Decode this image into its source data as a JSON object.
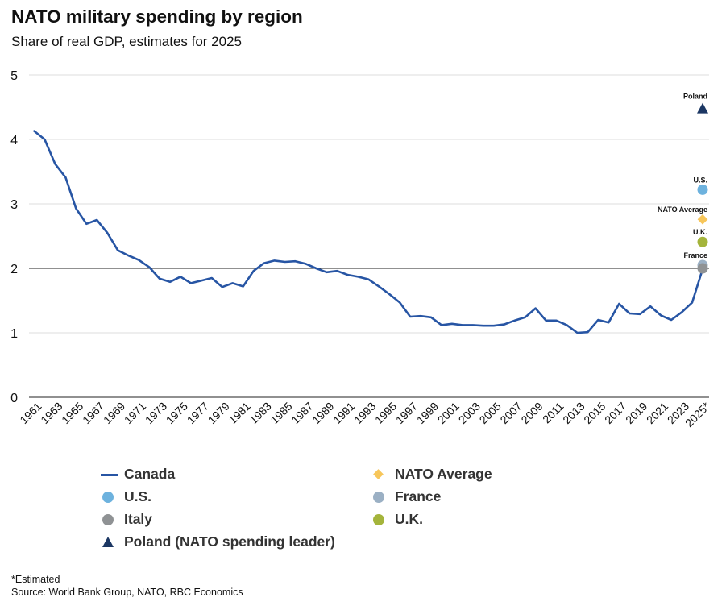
{
  "title": "NATO military spending by region",
  "subtitle": "Share of real GDP, estimates for 2025",
  "footnote": "*Estimated",
  "source": "Source: World Bank Group, NATO, RBC Economics",
  "colors": {
    "canada": "#2755a4",
    "us": "#6db2de",
    "nato_average": "#f7c65a",
    "france": "#9bb0c4",
    "italy": "#8f9294",
    "uk": "#a4b43b",
    "poland": "#1c3763",
    "grid": "#dddddd",
    "reference_line": "#222222"
  },
  "legend": [
    {
      "label": "Canada",
      "symbol": "line",
      "color": "#2755a4"
    },
    {
      "label": "NATO Average",
      "symbol": "diamond",
      "color": "#f7c65a"
    },
    {
      "label": "U.S.",
      "symbol": "circle",
      "color": "#6db2de"
    },
    {
      "label": "France",
      "symbol": "circle",
      "color": "#9bb0c4"
    },
    {
      "label": "Italy",
      "symbol": "circle",
      "color": "#8f9294"
    },
    {
      "label": "U.K.",
      "symbol": "circle",
      "color": "#a4b43b"
    },
    {
      "label": "Poland (NATO spending leader)",
      "symbol": "triangle",
      "color": "#1c3763"
    }
  ],
  "chart_data": {
    "type": "line",
    "title": "NATO military spending by region",
    "subtitle": "Share of real GDP, estimates for 2025",
    "xlabel": "",
    "ylabel": "",
    "ylim": [
      0,
      5
    ],
    "yticks": [
      0,
      1,
      2,
      3,
      4,
      5
    ],
    "xlim": [
      1961,
      2025
    ],
    "xtick_labels": [
      "1961",
      "1963",
      "1965",
      "1967",
      "1969",
      "1971",
      "1973",
      "1975",
      "1977",
      "1979",
      "1981",
      "1983",
      "1985",
      "1987",
      "1989",
      "1991",
      "1993",
      "1995",
      "1997",
      "1999",
      "2001",
      "2003",
      "2005",
      "2007",
      "2009",
      "2011",
      "2013",
      "2015",
      "2017",
      "2019",
      "2021",
      "2023",
      "2025*"
    ],
    "xtick_years": [
      1961,
      1963,
      1965,
      1967,
      1969,
      1971,
      1973,
      1975,
      1977,
      1979,
      1981,
      1983,
      1985,
      1987,
      1989,
      1991,
      1993,
      1995,
      1997,
      1999,
      2001,
      2003,
      2005,
      2007,
      2009,
      2011,
      2013,
      2015,
      2017,
      2019,
      2021,
      2023,
      2025
    ],
    "grid": true,
    "reference_line": 2,
    "series": [
      {
        "name": "Canada",
        "x": [
          1961,
          1962,
          1963,
          1964,
          1965,
          1966,
          1967,
          1968,
          1969,
          1970,
          1971,
          1972,
          1973,
          1974,
          1975,
          1976,
          1977,
          1978,
          1979,
          1980,
          1981,
          1982,
          1983,
          1984,
          1985,
          1986,
          1987,
          1988,
          1989,
          1990,
          1991,
          1992,
          1993,
          1994,
          1995,
          1996,
          1997,
          1998,
          1999,
          2000,
          2001,
          2002,
          2003,
          2004,
          2005,
          2006,
          2007,
          2008,
          2009,
          2010,
          2011,
          2012,
          2013,
          2014,
          2015,
          2016,
          2017,
          2018,
          2019,
          2020,
          2021,
          2022,
          2023,
          2024,
          2025
        ],
        "values": [
          4.13,
          4.0,
          3.62,
          3.41,
          2.93,
          2.69,
          2.75,
          2.55,
          2.28,
          2.2,
          2.13,
          2.02,
          1.84,
          1.79,
          1.87,
          1.77,
          1.81,
          1.85,
          1.71,
          1.77,
          1.72,
          1.96,
          2.08,
          2.12,
          2.1,
          2.11,
          2.07,
          2.0,
          1.94,
          1.96,
          1.9,
          1.87,
          1.83,
          1.72,
          1.6,
          1.47,
          1.25,
          1.26,
          1.24,
          1.12,
          1.14,
          1.12,
          1.12,
          1.11,
          1.11,
          1.13,
          1.19,
          1.24,
          1.38,
          1.19,
          1.19,
          1.12,
          1.0,
          1.01,
          1.2,
          1.16,
          1.45,
          1.3,
          1.29,
          1.41,
          1.27,
          1.2,
          1.32,
          1.47,
          1.99
        ]
      }
    ],
    "points_2025": [
      {
        "name": "Poland",
        "label": "Poland",
        "value": 4.48,
        "symbol": "triangle",
        "color": "#1c3763"
      },
      {
        "name": "U.S.",
        "label": "U.S.",
        "value": 3.22,
        "symbol": "circle",
        "color": "#6db2de"
      },
      {
        "name": "NATO Average",
        "label": "NATO Average",
        "value": 2.76,
        "symbol": "diamond",
        "color": "#f7c65a"
      },
      {
        "name": "U.K.",
        "label": "U.K.",
        "value": 2.41,
        "symbol": "circle",
        "color": "#a4b43b"
      },
      {
        "name": "France",
        "label": "France",
        "value": 2.05,
        "symbol": "circle",
        "color": "#9bb0c4"
      },
      {
        "name": "Italy",
        "label": "",
        "value": 2.0,
        "symbol": "circle",
        "color": "#8f9294"
      }
    ]
  }
}
